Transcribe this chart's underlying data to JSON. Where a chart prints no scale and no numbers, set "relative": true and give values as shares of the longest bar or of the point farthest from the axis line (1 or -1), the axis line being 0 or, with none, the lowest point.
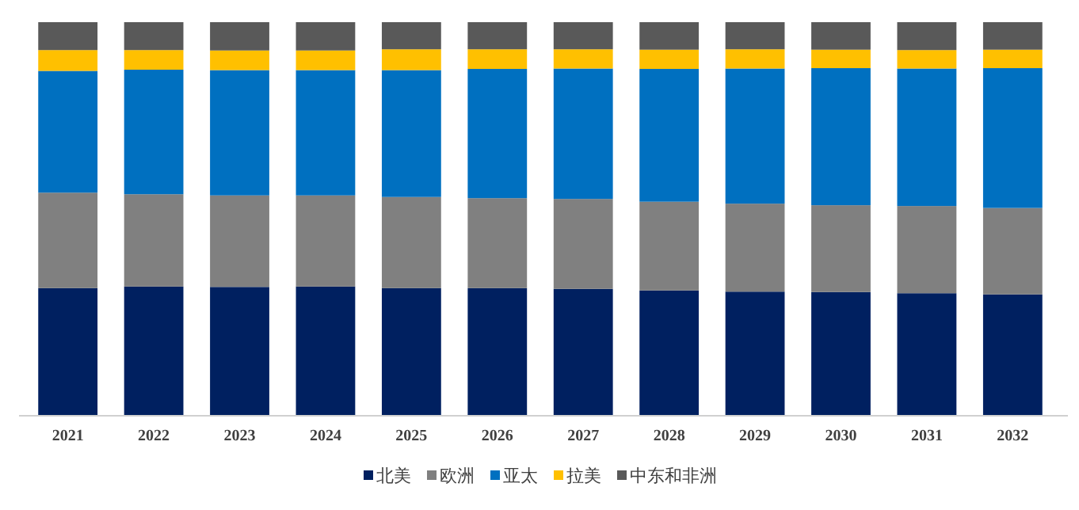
{
  "chart_data": {
    "type": "bar",
    "stacked": true,
    "relative": true,
    "legend": "bottom",
    "categories": [
      "2021",
      "2022",
      "2023",
      "2024",
      "2025",
      "2026",
      "2027",
      "2028",
      "2029",
      "2030",
      "2031",
      "2032"
    ],
    "series": [
      {
        "name": "北美",
        "color": "#002060",
        "values": [
          0.323,
          0.327,
          0.326,
          0.327,
          0.323,
          0.323,
          0.321,
          0.317,
          0.314,
          0.313,
          0.31,
          0.307
        ]
      },
      {
        "name": "欧洲",
        "color": "#808080",
        "values": [
          0.243,
          0.235,
          0.233,
          0.232,
          0.232,
          0.229,
          0.229,
          0.226,
          0.224,
          0.221,
          0.222,
          0.22
        ]
      },
      {
        "name": "亚太",
        "color": "#0070c0",
        "values": [
          0.31,
          0.317,
          0.319,
          0.319,
          0.323,
          0.329,
          0.332,
          0.338,
          0.344,
          0.349,
          0.35,
          0.356
        ]
      },
      {
        "name": "拉美",
        "color": "#ffc000",
        "values": [
          0.053,
          0.05,
          0.05,
          0.05,
          0.053,
          0.05,
          0.049,
          0.049,
          0.049,
          0.047,
          0.047,
          0.047
        ]
      },
      {
        "name": "中东和非洲",
        "color": "#595959",
        "values": [
          0.071,
          0.071,
          0.072,
          0.072,
          0.069,
          0.069,
          0.069,
          0.07,
          0.069,
          0.07,
          0.071,
          0.07
        ]
      }
    ]
  }
}
